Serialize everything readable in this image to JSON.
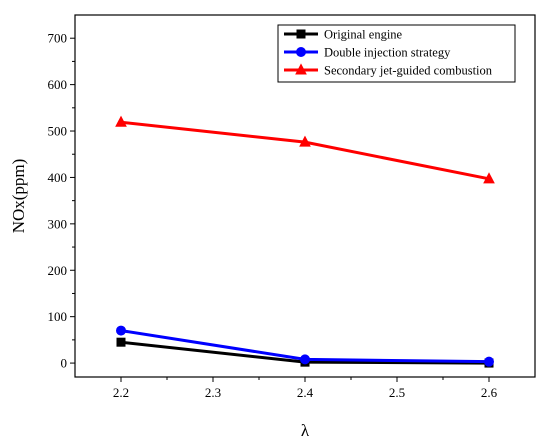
{
  "chart_data": {
    "type": "line",
    "title": "",
    "xlabel": "λ",
    "ylabel": "NOx(ppm)",
    "xlim": [
      2.15,
      2.65
    ],
    "ylim": [
      -30,
      750
    ],
    "xticks": [
      2.2,
      2.3,
      2.4,
      2.5,
      2.6
    ],
    "xtick_labels": [
      "2.2",
      "2.3",
      "2.4",
      "2.5",
      "2.6"
    ],
    "yticks": [
      0,
      100,
      200,
      300,
      400,
      500,
      600,
      700
    ],
    "ytick_labels": [
      "0",
      "100",
      "200",
      "300",
      "400",
      "500",
      "600",
      "700"
    ],
    "grid": false,
    "legend_position": "top-right",
    "x": [
      2.2,
      2.4,
      2.6
    ],
    "series": [
      {
        "name": "Original engine",
        "values": [
          45,
          2,
          0
        ],
        "color": "#000000",
        "marker": "square"
      },
      {
        "name": "Double injection strategy",
        "values": [
          70,
          8,
          3
        ],
        "color": "#0000ff",
        "marker": "circle"
      },
      {
        "name": "Secondary jet-guided combustion",
        "values": [
          519,
          476,
          397
        ],
        "color": "#ff0000",
        "marker": "triangle"
      }
    ]
  }
}
